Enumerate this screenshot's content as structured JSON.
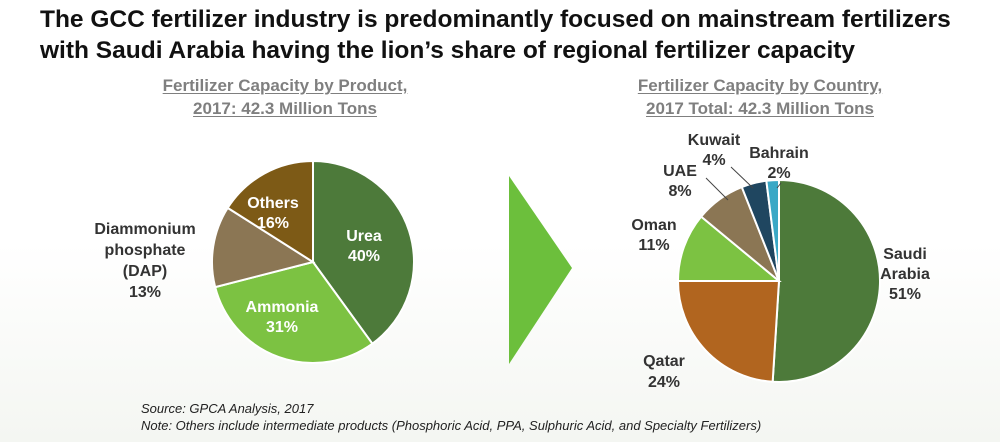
{
  "title_line1": "The GCC fertilizer industry is predominantly focused on mainstream fertilizers",
  "title_line2": "with Saudi Arabia having the lion’s share of regional fertilizer capacity",
  "colors": {
    "urea": "#4d7a3a",
    "ammonia": "#7cc242",
    "dap": "#8b7654",
    "others": "#7d5a16",
    "saudi": "#4d7a3a",
    "qatar": "#b1651f",
    "oman": "#7cc242",
    "uae": "#8b7654",
    "kuwait": "#1f4660",
    "bahrain": "#3aa8c6",
    "arrow": "#6cbf3c"
  },
  "chart_data": [
    {
      "type": "pie",
      "title_line1": "Fertilizer Capacity by Product,",
      "title_line2": "2017: 42.3 Million Tons",
      "slices": [
        {
          "name": "Urea",
          "value": 40,
          "label": "40%"
        },
        {
          "name": "Ammonia",
          "value": 31,
          "label": "31%"
        },
        {
          "name_lines": [
            "Diammonium",
            "phosphate",
            "(DAP)"
          ],
          "value": 13,
          "label": "13%"
        },
        {
          "name": "Others",
          "value": 16,
          "label": "16%"
        }
      ]
    },
    {
      "type": "pie",
      "title_line1": "Fertilizer Capacity by Country,",
      "title_line2": "2017 Total: 42.3 Million Tons",
      "slices": [
        {
          "name_lines": [
            "Saudi",
            "Arabia"
          ],
          "value": 51,
          "label": "51%"
        },
        {
          "name": "Qatar",
          "value": 24,
          "label": "24%"
        },
        {
          "name": "Oman",
          "value": 11,
          "label": "11%"
        },
        {
          "name": "UAE",
          "value": 8,
          "label": "8%"
        },
        {
          "name": "Kuwait",
          "value": 4,
          "label": "4%"
        },
        {
          "name": "Bahrain",
          "value": 2,
          "label": "2%"
        }
      ]
    }
  ],
  "source": "Source: GPCA Analysis, 2017",
  "note": "Note: Others include intermediate products (Phosphoric Acid, PPA, Sulphuric Acid, and Specialty Fertilizers)"
}
